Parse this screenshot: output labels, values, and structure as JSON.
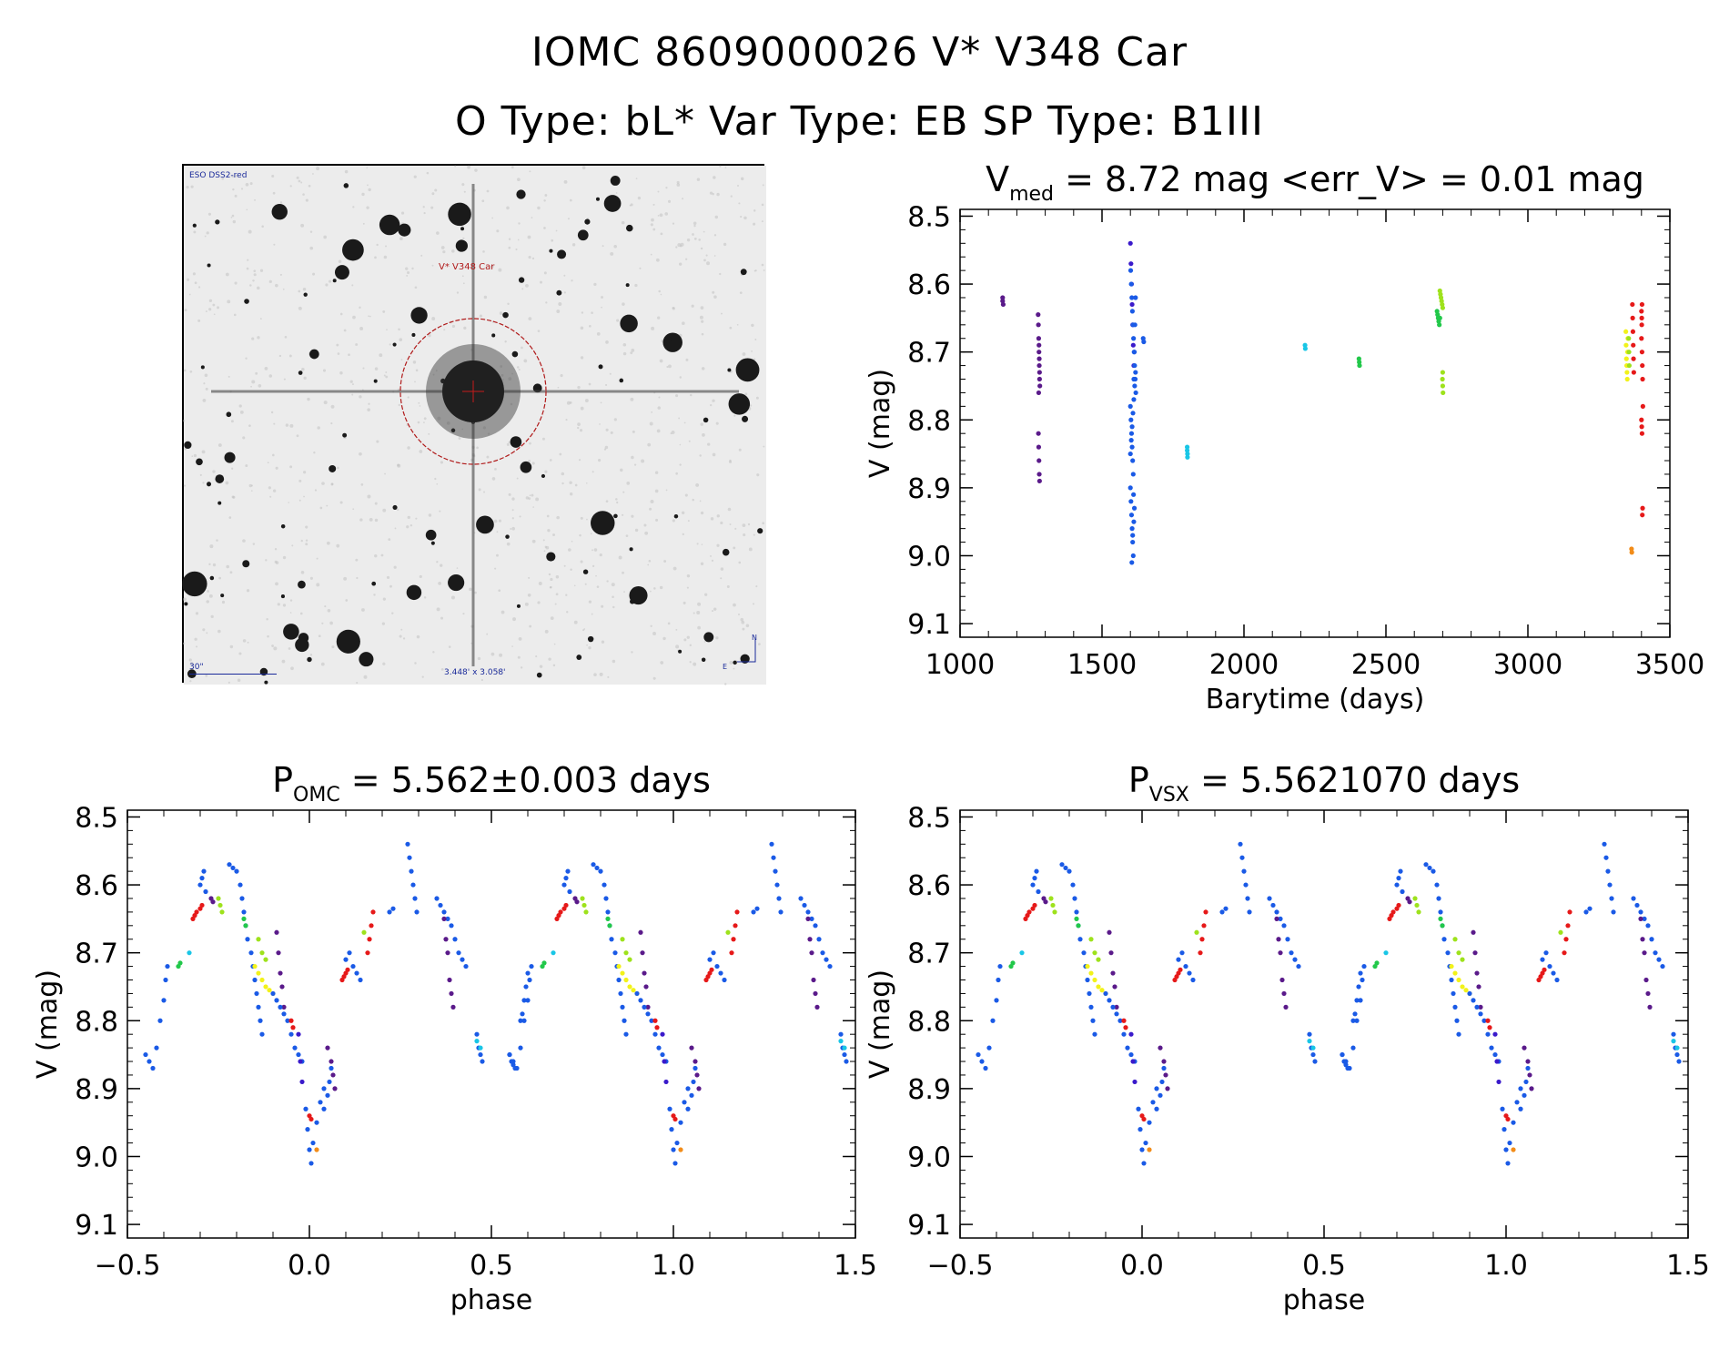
{
  "header": {
    "title": "IOMC 8609000026    V* V348 Car",
    "subtitle": "O Type: bL*  Var Type: EB  SP Type: B1III"
  },
  "finder_chart": {
    "label_top_left": "ESO DSS2-red",
    "target_label": "V* V348 Car",
    "scale_label": "30\"",
    "size_label": "3.448' x 3.058'",
    "compass_n": "N",
    "compass_e": "E"
  },
  "colors": {
    "purple": "#5a1a8a",
    "indigo": "#3a1acb",
    "blue": "#1a5ae6",
    "cyan": "#19c6e6",
    "green": "#22c84a",
    "lime": "#9ee21c",
    "yellow": "#f2f219",
    "orange": "#f28c19",
    "red": "#e61919"
  },
  "chart_data": [
    {
      "type": "scatter",
      "title": "V_med = 8.72 mag <err_V> = 0.01 mag",
      "title_main": "V",
      "title_sub": "med",
      "title_rest": " = 8.72 mag <err_V> = 0.01 mag",
      "xlabel": "Barytime (days)",
      "ylabel": "V (mag)",
      "xlim": [
        1000,
        3500
      ],
      "ylim": [
        9.12,
        8.49
      ],
      "xticks": [
        1000,
        1500,
        2000,
        2500,
        3000,
        3500
      ],
      "xtick_labels": [
        "1000",
        "1500",
        "2000",
        "2500",
        "3000",
        "3500"
      ],
      "yticks": [
        8.5,
        8.6,
        8.7,
        8.8,
        8.9,
        9.0,
        9.1
      ],
      "ytick_labels": [
        "8.5",
        "8.6",
        "8.7",
        "8.8",
        "8.9",
        "9.0",
        "9.1"
      ],
      "series": [
        {
          "color": "purple",
          "x": [
            1150,
            1150,
            1152
          ],
          "y": [
            8.62,
            8.625,
            8.63
          ]
        },
        {
          "color": "purple",
          "x": [
            1275,
            1276,
            1277,
            1278,
            1279,
            1280,
            1277,
            1278,
            1279,
            1280,
            1281,
            1276,
            1277,
            1278,
            1279,
            1280
          ],
          "y": [
            8.645,
            8.66,
            8.68,
            8.7,
            8.72,
            8.74,
            8.76,
            8.69,
            8.71,
            8.73,
            8.75,
            8.82,
            8.84,
            8.86,
            8.88,
            8.89
          ]
        },
        {
          "color": "indigo",
          "x": [
            1600,
            1602,
            1604,
            1606,
            1608,
            1610,
            1612
          ],
          "y": [
            8.54,
            8.57,
            8.6,
            8.63,
            8.66,
            8.69,
            8.72
          ]
        },
        {
          "color": "blue",
          "x": [
            1601,
            1603,
            1605,
            1607,
            1609,
            1611,
            1613,
            1615,
            1617,
            1619,
            1600,
            1602,
            1604,
            1606,
            1608,
            1610,
            1612,
            1614,
            1616,
            1618,
            1600,
            1602,
            1604,
            1606,
            1608,
            1610,
            1612,
            1614,
            1600,
            1603,
            1606,
            1609,
            1612,
            1615,
            1618,
            1605,
            1608,
            1611
          ],
          "y": [
            8.58,
            8.6,
            8.62,
            8.64,
            8.66,
            8.68,
            8.7,
            8.72,
            8.74,
            8.76,
            8.78,
            8.8,
            8.82,
            8.84,
            8.86,
            8.88,
            8.74,
            8.7,
            8.66,
            8.62,
            8.9,
            8.92,
            8.94,
            8.96,
            8.98,
            9.0,
            8.95,
            8.93,
            8.85,
            8.83,
            8.81,
            8.79,
            8.77,
            8.75,
            8.73,
            9.01,
            8.97,
            8.91
          ]
        },
        {
          "color": "blue",
          "x": [
            1645,
            1647
          ],
          "y": [
            8.68,
            8.685
          ]
        },
        {
          "color": "cyan",
          "x": [
            1800,
            1800,
            1801,
            1801
          ],
          "y": [
            8.84,
            8.845,
            8.85,
            8.855
          ]
        },
        {
          "color": "cyan",
          "x": [
            2215,
            2216
          ],
          "y": [
            8.69,
            8.695
          ]
        },
        {
          "color": "green",
          "x": [
            2405,
            2406,
            2407
          ],
          "y": [
            8.71,
            8.715,
            8.72
          ]
        },
        {
          "color": "green",
          "x": [
            2680,
            2682,
            2684,
            2686,
            2688,
            2690
          ],
          "y": [
            8.64,
            8.645,
            8.65,
            8.655,
            8.66,
            8.65
          ]
        },
        {
          "color": "lime",
          "x": [
            2690,
            2692,
            2694,
            2696,
            2698,
            2700,
            2700,
            2701
          ],
          "y": [
            8.61,
            8.615,
            8.62,
            8.625,
            8.63,
            8.635,
            8.73,
            8.76
          ]
        },
        {
          "color": "lime",
          "x": [
            2699,
            2700
          ],
          "y": [
            8.74,
            8.75
          ]
        },
        {
          "color": "yellow",
          "x": [
            3345,
            3346,
            3347,
            3348,
            3349,
            3350,
            3351,
            3352
          ],
          "y": [
            8.67,
            8.69,
            8.71,
            8.72,
            8.73,
            8.74,
            8.7,
            8.68
          ]
        },
        {
          "color": "lime",
          "x": [
            3355,
            3356,
            3357
          ],
          "y": [
            8.68,
            8.7,
            8.72
          ]
        },
        {
          "color": "orange",
          "x": [
            3365,
            3366
          ],
          "y": [
            8.99,
            8.995
          ]
        },
        {
          "color": "red",
          "x": [
            3368,
            3369,
            3370,
            3371,
            3372,
            3373,
            3400,
            3401,
            3402,
            3403,
            3404,
            3405,
            3400,
            3401,
            3402,
            3403,
            3404,
            3400,
            3401,
            3402
          ],
          "y": [
            8.63,
            8.65,
            8.67,
            8.69,
            8.71,
            8.73,
            8.64,
            8.66,
            8.7,
            8.72,
            8.74,
            8.78,
            8.8,
            8.81,
            8.82,
            8.94,
            8.93,
            8.68,
            8.65,
            8.63
          ]
        }
      ]
    },
    {
      "type": "scatter",
      "title": "P_OMC = 5.562±0.003 days",
      "title_main": "P",
      "title_sub": "OMC",
      "title_rest": " = 5.562±0.003 days",
      "xlabel": "phase",
      "ylabel": "V (mag)",
      "xlim": [
        -0.5,
        1.5
      ],
      "ylim": [
        9.12,
        8.49
      ],
      "xticks": [
        -0.5,
        0.0,
        0.5,
        1.0,
        1.5
      ],
      "xtick_labels": [
        "−0.5",
        "0.0",
        "0.5",
        "1.0",
        "1.5"
      ],
      "yticks": [
        8.5,
        8.6,
        8.7,
        8.8,
        8.9,
        9.0,
        9.1
      ],
      "ytick_labels": [
        "8.5",
        "8.6",
        "8.7",
        "8.8",
        "8.9",
        "9.0",
        "9.1"
      ],
      "phase_shift": 0.0
    },
    {
      "type": "scatter",
      "title": "P_VSX = 5.5621070 days",
      "title_main": "P",
      "title_sub": "VSX",
      "title_rest": " = 5.5621070 days",
      "xlabel": "phase",
      "ylabel": "V (mag)",
      "xlim": [
        -0.5,
        1.5
      ],
      "ylim": [
        9.12,
        8.49
      ],
      "xticks": [
        -0.5,
        0.0,
        0.5,
        1.0,
        1.5
      ],
      "xtick_labels": [
        "−0.5",
        "0.0",
        "0.5",
        "1.0",
        "1.5"
      ],
      "yticks": [
        8.5,
        8.6,
        8.7,
        8.8,
        8.9,
        9.0,
        9.1
      ],
      "ytick_labels": [
        "8.5",
        "8.6",
        "8.7",
        "8.8",
        "8.9",
        "9.0",
        "9.1"
      ],
      "phase_shift": 0.0
    }
  ],
  "phase_curve": [
    {
      "color": "blue",
      "phase": [
        -0.45,
        -0.44,
        -0.43,
        -0.42,
        -0.41,
        -0.4,
        -0.395,
        -0.39
      ],
      "v": [
        8.85,
        8.86,
        8.87,
        8.84,
        8.8,
        8.77,
        8.74,
        8.72
      ]
    },
    {
      "color": "green",
      "phase": [
        -0.36,
        -0.355
      ],
      "v": [
        8.72,
        8.715
      ]
    },
    {
      "color": "cyan",
      "phase": [
        -0.33
      ],
      "v": [
        8.7
      ]
    },
    {
      "color": "red",
      "phase": [
        -0.32,
        -0.315,
        -0.31,
        -0.3,
        -0.295
      ],
      "v": [
        8.65,
        8.645,
        8.64,
        8.635,
        8.63
      ]
    },
    {
      "color": "blue",
      "phase": [
        -0.3,
        -0.295,
        -0.29,
        -0.285
      ],
      "v": [
        8.6,
        8.59,
        8.58,
        8.61
      ]
    },
    {
      "color": "purple",
      "phase": [
        -0.27,
        -0.265
      ],
      "v": [
        8.62,
        8.625
      ]
    },
    {
      "color": "lime",
      "phase": [
        -0.25,
        -0.245,
        -0.24
      ],
      "v": [
        8.62,
        8.63,
        8.64
      ]
    },
    {
      "color": "blue",
      "phase": [
        -0.22,
        -0.21,
        -0.2,
        -0.19,
        -0.185,
        -0.18,
        -0.175,
        -0.17,
        -0.16,
        -0.155,
        -0.15,
        -0.145,
        -0.14,
        -0.135,
        -0.13
      ],
      "v": [
        8.57,
        8.575,
        8.58,
        8.6,
        8.62,
        8.64,
        8.66,
        8.68,
        8.7,
        8.72,
        8.74,
        8.76,
        8.78,
        8.8,
        8.82
      ]
    },
    {
      "color": "green",
      "phase": [
        -0.18,
        -0.175
      ],
      "v": [
        8.65,
        8.66
      ]
    },
    {
      "color": "yellow",
      "phase": [
        -0.15,
        -0.14,
        -0.13,
        -0.12,
        -0.11,
        -0.1
      ],
      "v": [
        8.72,
        8.73,
        8.74,
        8.75,
        8.755,
        8.76
      ]
    },
    {
      "color": "lime",
      "phase": [
        -0.14,
        -0.13,
        -0.12
      ],
      "v": [
        8.68,
        8.7,
        8.71
      ]
    },
    {
      "color": "purple",
      "phase": [
        -0.09,
        -0.085,
        -0.08,
        -0.075,
        -0.07
      ],
      "v": [
        8.67,
        8.7,
        8.73,
        8.75,
        8.78
      ]
    },
    {
      "color": "blue",
      "phase": [
        -0.1,
        -0.09,
        -0.08,
        -0.07,
        -0.06,
        -0.05,
        -0.04,
        -0.03,
        -0.02
      ],
      "v": [
        8.76,
        8.77,
        8.78,
        8.79,
        8.8,
        8.82,
        8.84,
        8.85,
        8.86
      ]
    },
    {
      "color": "red",
      "phase": [
        -0.05,
        -0.045
      ],
      "v": [
        8.8,
        8.81
      ]
    },
    {
      "color": "indigo",
      "phase": [
        -0.03,
        -0.025,
        -0.02
      ],
      "v": [
        8.82,
        8.86,
        8.89
      ]
    },
    {
      "color": "blue",
      "phase": [
        -0.01,
        -0.005,
        0.0,
        0.005,
        0.01,
        0.02,
        0.03,
        0.04
      ],
      "v": [
        8.93,
        8.96,
        8.99,
        9.01,
        8.98,
        8.95,
        8.92,
        8.9
      ]
    },
    {
      "color": "red",
      "phase": [
        0.0,
        0.005
      ],
      "v": [
        8.94,
        8.945
      ]
    },
    {
      "color": "orange",
      "phase": [
        0.02
      ],
      "v": [
        8.99
      ]
    },
    {
      "color": "blue",
      "phase": [
        0.04,
        0.05,
        0.055,
        0.06
      ],
      "v": [
        8.93,
        8.91,
        8.89,
        8.87
      ]
    },
    {
      "color": "purple",
      "phase": [
        0.05,
        0.06,
        0.065,
        0.07
      ],
      "v": [
        8.84,
        8.86,
        8.88,
        8.9
      ]
    },
    {
      "color": "red",
      "phase": [
        0.09,
        0.095,
        0.1,
        0.105
      ],
      "v": [
        8.74,
        8.735,
        8.73,
        8.725
      ]
    },
    {
      "color": "blue",
      "phase": [
        0.1,
        0.11,
        0.12,
        0.13,
        0.14
      ],
      "v": [
        8.71,
        8.7,
        8.72,
        8.73,
        8.74
      ]
    },
    {
      "color": "red",
      "phase": [
        0.16,
        0.165,
        0.17,
        0.175
      ],
      "v": [
        8.7,
        8.68,
        8.66,
        8.64
      ]
    },
    {
      "color": "lime",
      "phase": [
        0.15
      ],
      "v": [
        8.67
      ]
    },
    {
      "color": "blue",
      "phase": [
        0.22,
        0.23
      ],
      "v": [
        8.64,
        8.635
      ]
    },
    {
      "color": "blue",
      "phase": [
        0.27,
        0.275,
        0.28,
        0.285,
        0.29,
        0.295
      ],
      "v": [
        8.54,
        8.56,
        8.58,
        8.6,
        8.62,
        8.64
      ]
    },
    {
      "color": "blue",
      "phase": [
        0.35,
        0.36,
        0.37,
        0.38,
        0.39,
        0.4,
        0.41,
        0.42,
        0.43
      ],
      "v": [
        8.62,
        8.63,
        8.64,
        8.65,
        8.66,
        8.68,
        8.7,
        8.71,
        8.72
      ]
    },
    {
      "color": "purple",
      "phase": [
        0.37,
        0.375,
        0.38,
        0.385,
        0.39,
        0.395
      ],
      "v": [
        8.65,
        8.68,
        8.7,
        8.74,
        8.76,
        8.78
      ]
    },
    {
      "color": "blue",
      "phase": [
        0.46,
        0.465,
        0.47,
        0.475
      ],
      "v": [
        8.82,
        8.84,
        8.85,
        8.86
      ]
    },
    {
      "color": "cyan",
      "phase": [
        0.46,
        0.47
      ],
      "v": [
        8.83,
        8.84
      ]
    },
    {
      "color": "blue",
      "phase": [
        0.55,
        0.555,
        0.56,
        0.565
      ],
      "v": [
        8.85,
        8.86,
        8.865,
        8.87
      ]
    },
    {
      "color": "blue",
      "phase": [
        0.58,
        0.585,
        0.59,
        0.595,
        0.6
      ],
      "v": [
        8.8,
        8.79,
        8.77,
        8.75,
        8.73
      ]
    }
  ]
}
